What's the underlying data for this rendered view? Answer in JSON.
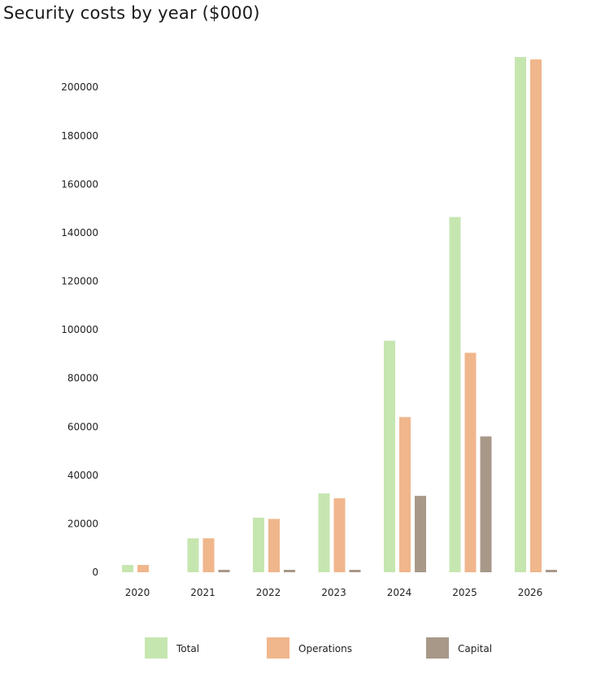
{
  "chart_data": {
    "type": "bar",
    "title": "Security costs by year ($000)",
    "xlabel": "",
    "ylabel": "",
    "categories": [
      "2020",
      "2021",
      "2022",
      "2023",
      "2024",
      "2025",
      "2026"
    ],
    "series": [
      {
        "name": "Total",
        "color": "#c6e6b0",
        "values": [
          3000,
          14000,
          22500,
          32500,
          95500,
          146500,
          212500
        ]
      },
      {
        "name": "Operations",
        "color": "#f0b68c",
        "values": [
          3000,
          14000,
          22000,
          30500,
          64000,
          90500,
          211500
        ]
      },
      {
        "name": "Capital",
        "color": "#a89888",
        "values": [
          0,
          1000,
          1000,
          1000,
          31500,
          56000,
          1000
        ]
      }
    ],
    "yticks": [
      0,
      20000,
      40000,
      60000,
      80000,
      100000,
      120000,
      140000,
      160000,
      180000,
      200000
    ],
    "ylim": [
      0,
      212500
    ],
    "grid": false,
    "legend": "bottom"
  }
}
